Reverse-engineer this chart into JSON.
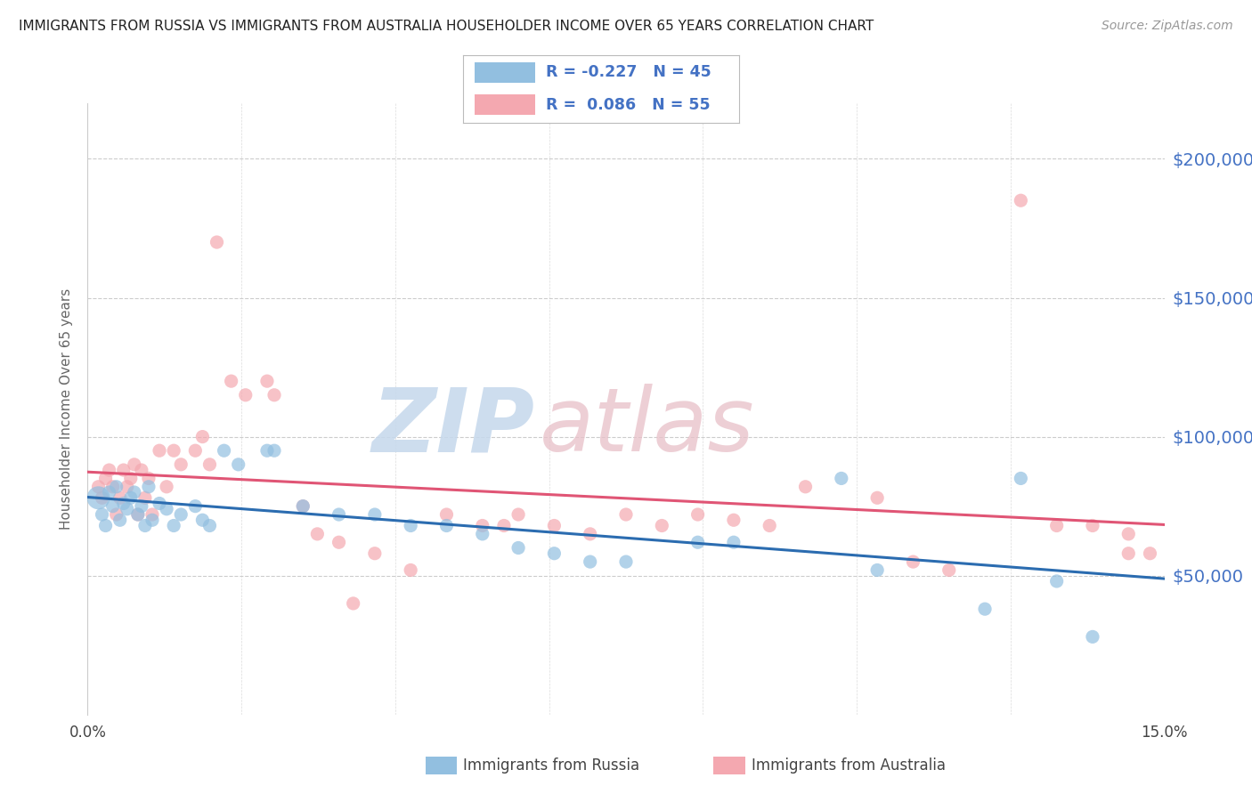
{
  "title": "IMMIGRANTS FROM RUSSIA VS IMMIGRANTS FROM AUSTRALIA HOUSEHOLDER INCOME OVER 65 YEARS CORRELATION CHART",
  "source": "Source: ZipAtlas.com",
  "ylabel": "Householder Income Over 65 years",
  "xlim": [
    0.0,
    15.0
  ],
  "ylim": [
    0,
    220000
  ],
  "yticks": [
    50000,
    100000,
    150000,
    200000
  ],
  "ytick_labels": [
    "$50,000",
    "$100,000",
    "$150,000",
    "$200,000"
  ],
  "russia_R": "-0.227",
  "russia_N": "45",
  "australia_R": "0.086",
  "australia_N": "55",
  "russia_color": "#92bfe0",
  "australia_color": "#f4a8b0",
  "russia_line_color": "#2b6cb0",
  "australia_line_color": "#e05575",
  "watermark_zip_color": "#c5d8ec",
  "watermark_atlas_color": "#e8c8cc",
  "background_color": "#ffffff",
  "grid_color": "#cccccc",
  "axis_color": "#4472c4",
  "legend_label_color": "#4472c4",
  "russia_points": [
    [
      0.15,
      78000
    ],
    [
      0.2,
      72000
    ],
    [
      0.25,
      68000
    ],
    [
      0.3,
      80000
    ],
    [
      0.35,
      75000
    ],
    [
      0.4,
      82000
    ],
    [
      0.45,
      70000
    ],
    [
      0.5,
      76000
    ],
    [
      0.55,
      74000
    ],
    [
      0.6,
      78000
    ],
    [
      0.65,
      80000
    ],
    [
      0.7,
      72000
    ],
    [
      0.75,
      75000
    ],
    [
      0.8,
      68000
    ],
    [
      0.85,
      82000
    ],
    [
      0.9,
      70000
    ],
    [
      1.0,
      76000
    ],
    [
      1.1,
      74000
    ],
    [
      1.2,
      68000
    ],
    [
      1.3,
      72000
    ],
    [
      1.5,
      75000
    ],
    [
      1.6,
      70000
    ],
    [
      1.7,
      68000
    ],
    [
      1.9,
      95000
    ],
    [
      2.1,
      90000
    ],
    [
      2.5,
      95000
    ],
    [
      2.6,
      95000
    ],
    [
      3.0,
      75000
    ],
    [
      3.5,
      72000
    ],
    [
      4.0,
      72000
    ],
    [
      4.5,
      68000
    ],
    [
      5.0,
      68000
    ],
    [
      5.5,
      65000
    ],
    [
      6.0,
      60000
    ],
    [
      6.5,
      58000
    ],
    [
      7.0,
      55000
    ],
    [
      7.5,
      55000
    ],
    [
      8.5,
      62000
    ],
    [
      9.0,
      62000
    ],
    [
      10.5,
      85000
    ],
    [
      11.0,
      52000
    ],
    [
      12.5,
      38000
    ],
    [
      13.0,
      85000
    ],
    [
      13.5,
      48000
    ],
    [
      14.0,
      28000
    ]
  ],
  "australia_points": [
    [
      0.15,
      82000
    ],
    [
      0.2,
      78000
    ],
    [
      0.25,
      85000
    ],
    [
      0.3,
      88000
    ],
    [
      0.35,
      82000
    ],
    [
      0.4,
      72000
    ],
    [
      0.45,
      78000
    ],
    [
      0.5,
      88000
    ],
    [
      0.55,
      82000
    ],
    [
      0.6,
      85000
    ],
    [
      0.65,
      90000
    ],
    [
      0.7,
      72000
    ],
    [
      0.75,
      88000
    ],
    [
      0.8,
      78000
    ],
    [
      0.85,
      85000
    ],
    [
      0.9,
      72000
    ],
    [
      1.0,
      95000
    ],
    [
      1.1,
      82000
    ],
    [
      1.2,
      95000
    ],
    [
      1.3,
      90000
    ],
    [
      1.5,
      95000
    ],
    [
      1.6,
      100000
    ],
    [
      1.7,
      90000
    ],
    [
      1.8,
      170000
    ],
    [
      2.0,
      120000
    ],
    [
      2.2,
      115000
    ],
    [
      2.5,
      120000
    ],
    [
      2.6,
      115000
    ],
    [
      3.0,
      75000
    ],
    [
      3.2,
      65000
    ],
    [
      3.5,
      62000
    ],
    [
      3.7,
      40000
    ],
    [
      4.0,
      58000
    ],
    [
      4.5,
      52000
    ],
    [
      5.0,
      72000
    ],
    [
      5.5,
      68000
    ],
    [
      5.8,
      68000
    ],
    [
      6.0,
      72000
    ],
    [
      6.5,
      68000
    ],
    [
      7.0,
      65000
    ],
    [
      7.5,
      72000
    ],
    [
      8.0,
      68000
    ],
    [
      8.5,
      72000
    ],
    [
      9.0,
      70000
    ],
    [
      9.5,
      68000
    ],
    [
      10.0,
      82000
    ],
    [
      11.0,
      78000
    ],
    [
      11.5,
      55000
    ],
    [
      12.0,
      52000
    ],
    [
      13.0,
      185000
    ],
    [
      13.5,
      68000
    ],
    [
      14.0,
      68000
    ],
    [
      14.5,
      65000
    ],
    [
      14.8,
      58000
    ],
    [
      14.5,
      58000
    ]
  ],
  "russia_sizes": [
    350,
    120,
    120,
    120,
    120,
    120,
    120,
    120,
    120,
    120,
    120,
    120,
    120,
    120,
    120,
    120,
    120,
    120,
    120,
    120,
    120,
    120,
    120,
    120,
    120,
    120,
    120,
    120,
    120,
    120,
    120,
    120,
    120,
    120,
    120,
    120,
    120,
    120,
    120,
    120,
    120,
    120,
    120,
    120,
    120
  ],
  "australia_sizes": [
    120,
    120,
    120,
    120,
    120,
    120,
    120,
    120,
    120,
    120,
    120,
    120,
    120,
    120,
    120,
    120,
    120,
    120,
    120,
    120,
    120,
    120,
    120,
    120,
    120,
    120,
    120,
    120,
    120,
    120,
    120,
    120,
    120,
    120,
    120,
    120,
    120,
    120,
    120,
    120,
    120,
    120,
    120,
    120,
    120,
    120,
    120,
    120,
    120,
    120,
    120,
    120,
    120,
    120,
    120
  ]
}
